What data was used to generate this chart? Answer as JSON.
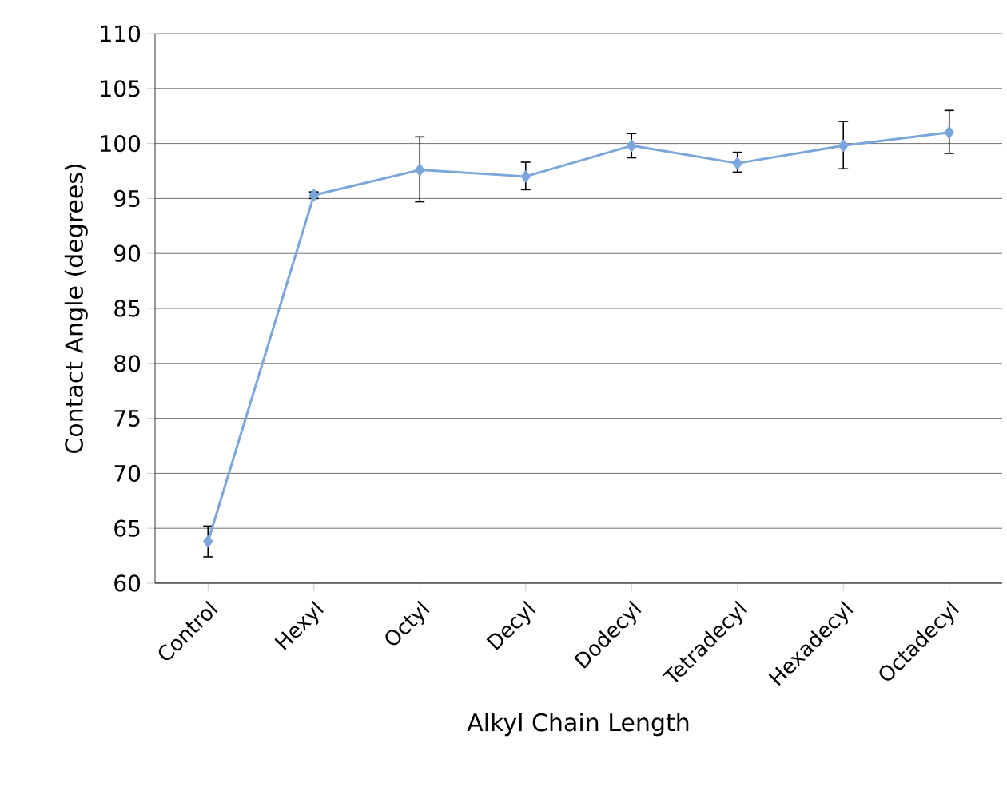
{
  "chart_data": {
    "type": "line",
    "xlabel": "Alkyl Chain Length",
    "ylabel": "Contact Angle (degrees)",
    "categories": [
      "Control",
      "Hexyl",
      "Octyl",
      "Decyl",
      "Dodecyl",
      "Tetradecyl",
      "Hexadecyl",
      "Octadecyl"
    ],
    "series": [
      {
        "color": "#7aa6dc",
        "values": [
          63.8,
          95.3,
          97.6,
          97.0,
          99.8,
          98.2,
          99.8,
          101.0
        ],
        "errors": [
          [
            62.4,
            65.2
          ],
          [
            95.0,
            95.6
          ],
          [
            94.7,
            100.6
          ],
          [
            95.8,
            98.3
          ],
          [
            98.7,
            100.9
          ],
          [
            97.4,
            99.2
          ],
          [
            97.7,
            102.0
          ],
          [
            99.1,
            103.0
          ]
        ]
      }
    ],
    "ylim": [
      60,
      110
    ],
    "yticks": [
      60,
      65,
      70,
      75,
      80,
      85,
      90,
      95,
      100,
      105,
      110
    ],
    "grid": "y",
    "marker": "diamond",
    "line_style": "solid"
  }
}
